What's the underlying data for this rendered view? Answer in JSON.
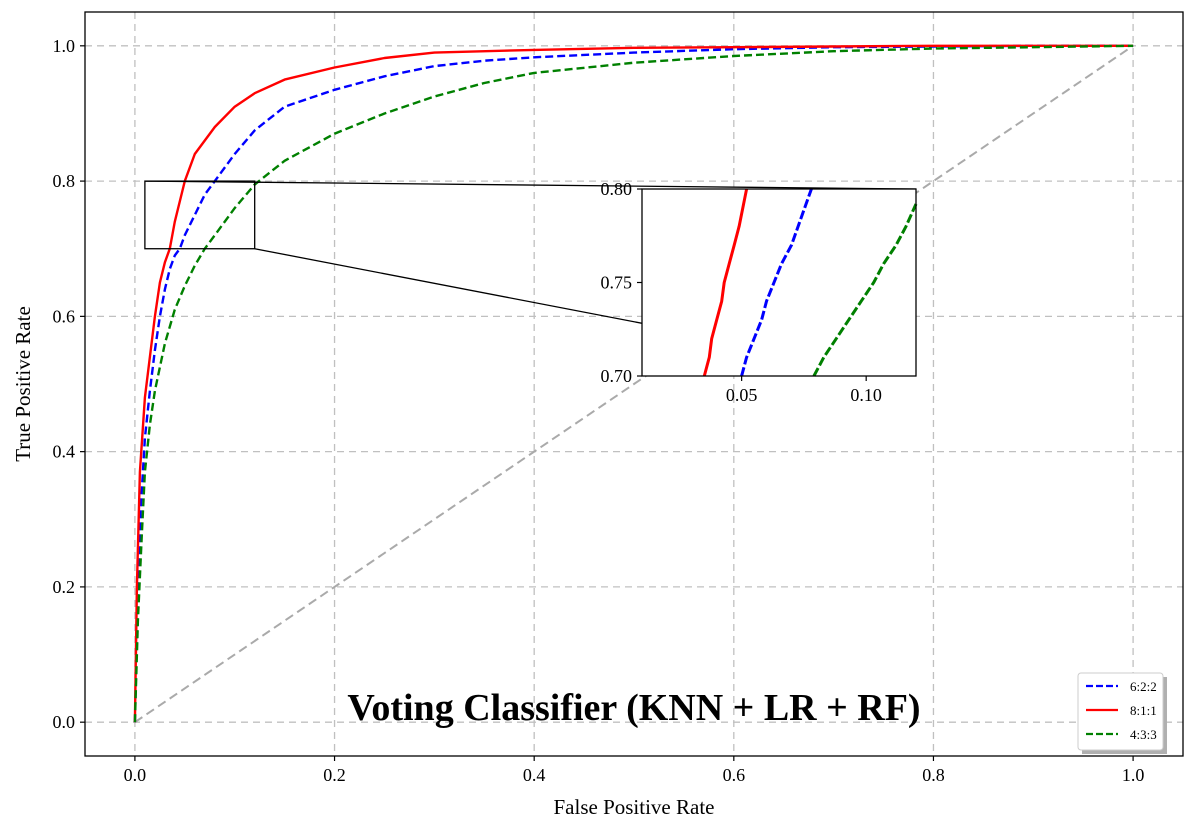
{
  "chart_data": {
    "type": "line",
    "title": "Voting Classifier (KNN + LR + RF)",
    "xlabel": "False Positive Rate",
    "ylabel": "True Positive Rate",
    "xlim": [
      -0.05,
      1.05
    ],
    "ylim": [
      -0.05,
      1.05
    ],
    "xticks": [
      0.0,
      0.2,
      0.4,
      0.6,
      0.8,
      1.0
    ],
    "xtick_labels": [
      "0.0",
      "0.2",
      "0.4",
      "0.6",
      "0.8",
      "1.0"
    ],
    "yticks": [
      0.0,
      0.2,
      0.4,
      0.6,
      0.8,
      1.0
    ],
    "ytick_labels": [
      "0.0",
      "0.2",
      "0.4",
      "0.6",
      "0.8",
      "1.0"
    ],
    "grid": true,
    "legend_position": "lower-right",
    "series": [
      {
        "name": "6:2:2",
        "color": "#0000ff",
        "style": "dashed",
        "x": [
          0.0,
          0.003,
          0.006,
          0.01,
          0.015,
          0.02,
          0.025,
          0.03,
          0.035,
          0.04,
          0.045,
          0.05,
          0.06,
          0.07,
          0.08,
          0.1,
          0.12,
          0.15,
          0.2,
          0.25,
          0.3,
          0.35,
          0.4,
          0.5,
          0.6,
          0.7,
          0.8,
          0.9,
          1.0
        ],
        "y": [
          0.0,
          0.2,
          0.32,
          0.42,
          0.49,
          0.55,
          0.6,
          0.64,
          0.67,
          0.69,
          0.7,
          0.72,
          0.75,
          0.78,
          0.8,
          0.84,
          0.875,
          0.91,
          0.935,
          0.955,
          0.97,
          0.978,
          0.983,
          0.99,
          0.995,
          0.998,
          0.999,
          1.0,
          1.0
        ]
      },
      {
        "name": "8:1:1",
        "color": "#ff0000",
        "style": "solid",
        "x": [
          0.0,
          0.002,
          0.005,
          0.01,
          0.015,
          0.02,
          0.025,
          0.03,
          0.035,
          0.04,
          0.045,
          0.05,
          0.06,
          0.07,
          0.08,
          0.1,
          0.12,
          0.15,
          0.2,
          0.25,
          0.3,
          0.4,
          0.5,
          0.6,
          0.7,
          0.8,
          1.0
        ],
        "y": [
          0.0,
          0.2,
          0.37,
          0.48,
          0.54,
          0.6,
          0.65,
          0.68,
          0.7,
          0.74,
          0.77,
          0.8,
          0.84,
          0.86,
          0.88,
          0.91,
          0.93,
          0.95,
          0.968,
          0.982,
          0.99,
          0.994,
          0.997,
          0.998,
          0.999,
          1.0,
          1.0
        ]
      },
      {
        "name": "4:3:3",
        "color": "#008000",
        "style": "dashed",
        "x": [
          0.0,
          0.003,
          0.007,
          0.01,
          0.015,
          0.02,
          0.03,
          0.04,
          0.05,
          0.06,
          0.07,
          0.08,
          0.1,
          0.12,
          0.15,
          0.2,
          0.25,
          0.3,
          0.35,
          0.4,
          0.5,
          0.6,
          0.7,
          0.8,
          0.9,
          1.0
        ],
        "y": [
          0.0,
          0.15,
          0.28,
          0.37,
          0.44,
          0.49,
          0.56,
          0.61,
          0.645,
          0.675,
          0.7,
          0.72,
          0.76,
          0.795,
          0.83,
          0.87,
          0.9,
          0.925,
          0.945,
          0.96,
          0.975,
          0.985,
          0.992,
          0.996,
          0.998,
          1.0
        ]
      }
    ],
    "reference_line": {
      "name": "chance",
      "color": "#aaaaaa",
      "x": [
        0.0,
        1.0
      ],
      "y": [
        0.0,
        1.0
      ]
    },
    "zoom_box": {
      "x": [
        0.01,
        0.12
      ],
      "y": [
        0.7,
        0.8
      ]
    },
    "inset": {
      "xlim": [
        0.01,
        0.12
      ],
      "ylim": [
        0.7,
        0.8
      ],
      "xticks": [
        0.05,
        0.1
      ],
      "xtick_labels": [
        "0.05",
        "0.10"
      ],
      "yticks": [
        0.7,
        0.75,
        0.8
      ],
      "ytick_labels": [
        "0.70",
        "0.75",
        "0.80"
      ],
      "series": [
        {
          "name": "8:1:1",
          "color": "#ff0000",
          "style": "solid",
          "x": [
            0.035,
            0.037,
            0.038,
            0.04,
            0.042,
            0.043,
            0.045,
            0.047,
            0.049,
            0.052
          ],
          "y": [
            0.7,
            0.71,
            0.72,
            0.73,
            0.74,
            0.75,
            0.76,
            0.77,
            0.78,
            0.8
          ]
        },
        {
          "name": "6:2:2",
          "color": "#0000ff",
          "style": "dashed",
          "x": [
            0.05,
            0.052,
            0.055,
            0.058,
            0.06,
            0.063,
            0.066,
            0.07,
            0.074,
            0.078
          ],
          "y": [
            0.7,
            0.71,
            0.72,
            0.73,
            0.74,
            0.75,
            0.76,
            0.77,
            0.785,
            0.8
          ]
        },
        {
          "name": "4:3:3",
          "color": "#008000",
          "style": "dashed",
          "x": [
            0.079,
            0.083,
            0.088,
            0.093,
            0.098,
            0.103,
            0.107,
            0.112,
            0.116,
            0.12
          ],
          "y": [
            0.7,
            0.71,
            0.72,
            0.73,
            0.74,
            0.75,
            0.76,
            0.77,
            0.78,
            0.792
          ]
        }
      ]
    }
  }
}
